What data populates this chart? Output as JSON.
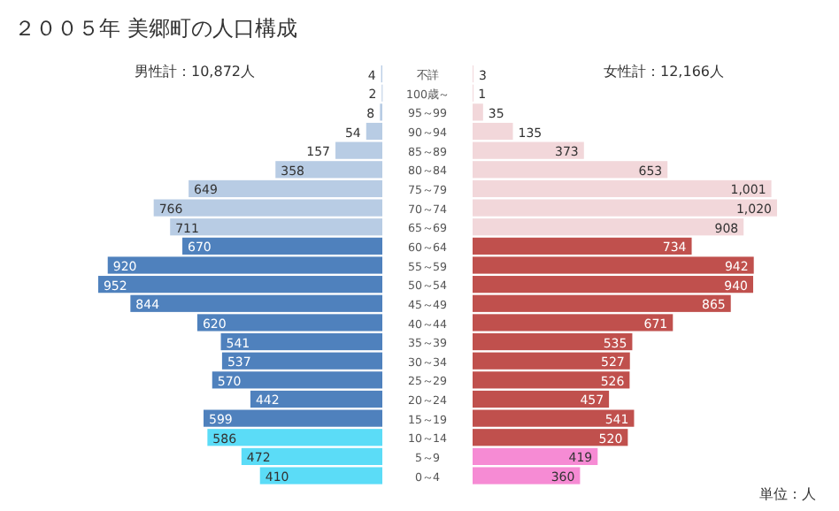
{
  "chart_data": [
    {
      "type": "bar",
      "orientation": "horizontal",
      "title": "２００５年 美郷町の人口構成",
      "categories": [
        "不詳",
        "100歳～",
        "95～99",
        "90～94",
        "85～89",
        "80～84",
        "75～79",
        "70～74",
        "65～69",
        "60～64",
        "55～59",
        "50～54",
        "45～49",
        "40～44",
        "35～39",
        "30～34",
        "25～29",
        "20～24",
        "15～19",
        "10～14",
        "5～9",
        "0～4"
      ],
      "values": [
        4,
        2,
        8,
        54,
        157,
        358,
        649,
        766,
        711,
        670,
        920,
        952,
        844,
        620,
        541,
        537,
        570,
        442,
        599,
        586,
        472,
        410
      ],
      "value_labels": [
        "4",
        "2",
        "8",
        "54",
        "157",
        "358",
        "649",
        "766",
        "711",
        "670",
        "920",
        "952",
        "844",
        "620",
        "541",
        "537",
        "570",
        "442",
        "599",
        "586",
        "472",
        "410"
      ],
      "colors": [
        "#b8cce4",
        "#b8cce4",
        "#b8cce4",
        "#b8cce4",
        "#b8cce4",
        "#b8cce4",
        "#b8cce4",
        "#b8cce4",
        "#b8cce4",
        "#4f81bd",
        "#4f81bd",
        "#4f81bd",
        "#4f81bd",
        "#4f81bd",
        "#4f81bd",
        "#4f81bd",
        "#4f81bd",
        "#4f81bd",
        "#4f81bd",
        "#5bdcf7",
        "#5bdcf7",
        "#5bdcf7"
      ],
      "annotations": [
        "男性計：10,872人"
      ]
    },
    {
      "type": "bar",
      "orientation": "horizontal",
      "categories": [
        null,
        null,
        null,
        null,
        null,
        null,
        null,
        null,
        null,
        null,
        null,
        null,
        null,
        null,
        null,
        null,
        null,
        null,
        null,
        null,
        null,
        null
      ],
      "values": [
        3,
        1,
        35,
        135,
        373,
        653,
        1001,
        1020,
        908,
        734,
        942,
        940,
        865,
        671,
        535,
        527,
        526,
        457,
        541,
        520,
        419,
        360
      ],
      "value_labels": [
        "3",
        "1",
        "35",
        "135",
        "373",
        "653",
        "1,001",
        "1,020",
        "908",
        "734",
        "942",
        "940",
        "865",
        "671",
        "535",
        "527",
        "526",
        "457",
        "541",
        "520",
        "419",
        "360"
      ],
      "colors": [
        "#f2d7da",
        "#f2d7da",
        "#f2d7da",
        "#f2d7da",
        "#f2d7da",
        "#f2d7da",
        "#f2d7da",
        "#f2d7da",
        "#f2d7da",
        "#c0504d",
        "#c0504d",
        "#c0504d",
        "#c0504d",
        "#c0504d",
        "#c0504d",
        "#c0504d",
        "#c0504d",
        "#c0504d",
        "#c0504d",
        "#c0504d",
        "#f68bd4",
        "#f68bd4"
      ],
      "annotations": [
        "女性計：12,166人",
        "単位：人"
      ]
    }
  ]
}
